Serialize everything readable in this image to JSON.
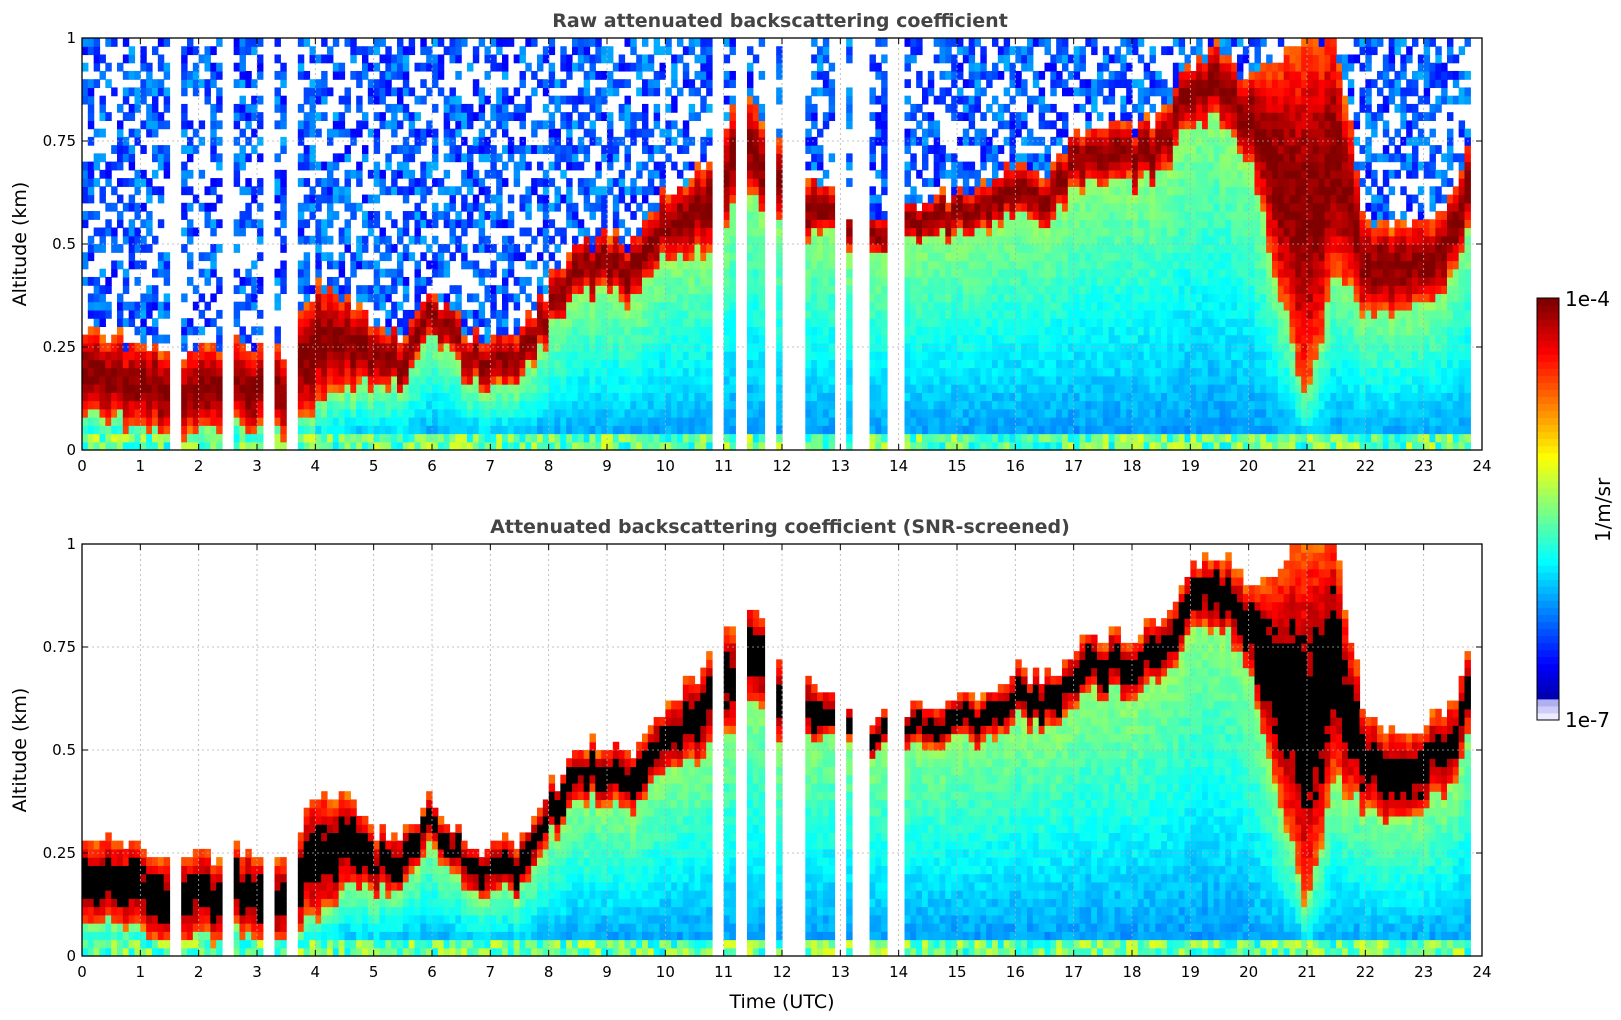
{
  "chart_data": [
    {
      "type": "heatmap",
      "title": "Raw attenuated backscattering coefficient",
      "xlabel": "",
      "ylabel": "Altitude (km)",
      "xlim": [
        0,
        24
      ],
      "ylim": [
        0,
        1
      ],
      "xticks": [
        "0",
        "1",
        "2",
        "3",
        "4",
        "5",
        "6",
        "7",
        "8",
        "9",
        "10",
        "11",
        "12",
        "13",
        "14",
        "15",
        "16",
        "17",
        "18",
        "19",
        "20",
        "21",
        "22",
        "23",
        "24"
      ],
      "yticks": [
        "0",
        "0.25",
        "0.5",
        "0.75",
        "1"
      ],
      "grid": true,
      "screened": false,
      "color_scale": "log",
      "colormap": "jet",
      "layer_top_km": [
        [
          0,
          0.3
        ],
        [
          1,
          0.26
        ],
        [
          2,
          0.24
        ],
        [
          3,
          0.26
        ],
        [
          3.5,
          0.24
        ],
        [
          4,
          0.4
        ],
        [
          4.5,
          0.38
        ],
        [
          5,
          0.3
        ],
        [
          5.5,
          0.28
        ],
        [
          6,
          0.38
        ],
        [
          6.5,
          0.3
        ],
        [
          7,
          0.26
        ],
        [
          7.5,
          0.28
        ],
        [
          8,
          0.4
        ],
        [
          8.5,
          0.5
        ],
        [
          9,
          0.52
        ],
        [
          9.5,
          0.5
        ],
        [
          10,
          0.62
        ],
        [
          10.5,
          0.66
        ],
        [
          11,
          0.8
        ],
        [
          11.5,
          0.84
        ],
        [
          12,
          0.72
        ],
        [
          12.5,
          0.66
        ],
        [
          13,
          0.6
        ],
        [
          13.5,
          0.56
        ],
        [
          14,
          0.6
        ],
        [
          14.5,
          0.6
        ],
        [
          15,
          0.62
        ],
        [
          15.5,
          0.64
        ],
        [
          16,
          0.7
        ],
        [
          16.5,
          0.66
        ],
        [
          17,
          0.76
        ],
        [
          17.5,
          0.78
        ],
        [
          18,
          0.78
        ],
        [
          18.5,
          0.8
        ],
        [
          19,
          0.95
        ],
        [
          19.5,
          0.98
        ],
        [
          20,
          0.9
        ],
        [
          20.5,
          0.96
        ],
        [
          21,
          1.0
        ],
        [
          21.5,
          1.0
        ],
        [
          22,
          0.56
        ],
        [
          22.5,
          0.55
        ],
        [
          23,
          0.55
        ],
        [
          23.5,
          0.62
        ],
        [
          23.8,
          0.75
        ]
      ],
      "layer_thickness_km": [
        [
          0,
          0.2
        ],
        [
          3.5,
          0.2
        ],
        [
          4,
          0.3
        ],
        [
          5,
          0.15
        ],
        [
          6,
          0.1
        ],
        [
          7,
          0.12
        ],
        [
          8,
          0.12
        ],
        [
          10,
          0.15
        ],
        [
          11,
          0.25
        ],
        [
          12,
          0.2
        ],
        [
          13,
          0.08
        ],
        [
          15,
          0.1
        ],
        [
          16,
          0.12
        ],
        [
          18,
          0.14
        ],
        [
          19,
          0.15
        ],
        [
          20,
          0.2
        ],
        [
          21,
          0.9
        ],
        [
          22,
          0.22
        ],
        [
          23,
          0.2
        ]
      ],
      "missing_profiles_utc": [
        1.6,
        2.5,
        3.2,
        3.6,
        10.9,
        11.3,
        11.8,
        12.1,
        12.3,
        13.0,
        13.25,
        13.4,
        13.85,
        14.0
      ]
    },
    {
      "type": "heatmap",
      "title": "Attenuated backscattering coefficient (SNR-screened)",
      "xlabel": "Time (UTC)",
      "ylabel": "Altitude (km)",
      "xlim": [
        0,
        24
      ],
      "ylim": [
        0,
        1
      ],
      "xticks": [
        "0",
        "1",
        "2",
        "3",
        "4",
        "5",
        "6",
        "7",
        "8",
        "9",
        "10",
        "11",
        "12",
        "13",
        "14",
        "15",
        "16",
        "17",
        "18",
        "19",
        "20",
        "21",
        "22",
        "23",
        "24"
      ],
      "yticks": [
        "0",
        "0.25",
        "0.5",
        "0.75",
        "1"
      ],
      "grid": true,
      "screened": true,
      "color_scale": "log",
      "colormap": "jet",
      "saturated_color": "#000000",
      "colorbar": {
        "label": "1/m/sr",
        "min_label": "1e-7",
        "max_label": "1e-4",
        "min": 1e-07,
        "max": 0.0001,
        "placement": "right"
      }
    }
  ]
}
